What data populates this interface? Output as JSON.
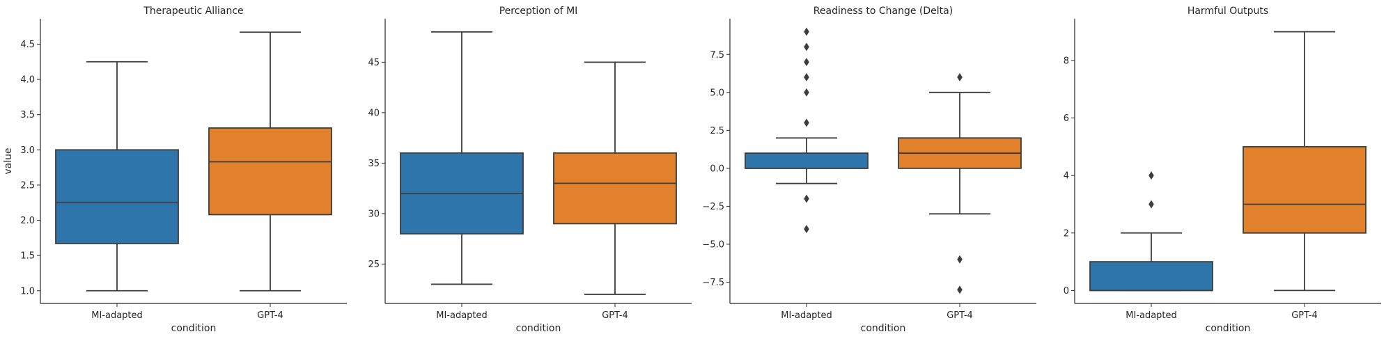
{
  "colors": {
    "MI-adapted": "#2e75ac",
    "GPT-4": "#e1812c"
  },
  "chart_data": [
    {
      "type": "box",
      "title": "Therapeutic Alliance",
      "xlabel": "condition",
      "ylabel": "value",
      "categories": [
        "MI-adapted",
        "GPT-4"
      ],
      "ylim": [
        0.82,
        4.86
      ],
      "yticks": [
        1.0,
        1.5,
        2.0,
        2.5,
        3.0,
        3.5,
        4.0,
        4.5
      ],
      "ytick_labels": [
        "1.0",
        "1.5",
        "2.0",
        "2.5",
        "3.0",
        "3.5",
        "4.0",
        "4.5"
      ],
      "boxes": [
        {
          "category": "MI-adapted",
          "whisker_low": 1.0,
          "q1": 1.67,
          "median": 2.25,
          "q3": 3.0,
          "whisker_high": 4.25,
          "outliers": []
        },
        {
          "category": "GPT-4",
          "whisker_low": 1.0,
          "q1": 2.08,
          "median": 2.83,
          "q3": 3.31,
          "whisker_high": 4.67,
          "outliers": []
        }
      ]
    },
    {
      "type": "box",
      "title": "Perception of MI",
      "xlabel": "condition",
      "ylabel": "",
      "categories": [
        "MI-adapted",
        "GPT-4"
      ],
      "ylim": [
        21.1,
        49.3
      ],
      "yticks": [
        25,
        30,
        35,
        40,
        45
      ],
      "ytick_labels": [
        "25",
        "30",
        "35",
        "40",
        "45"
      ],
      "boxes": [
        {
          "category": "MI-adapted",
          "whisker_low": 23,
          "q1": 28,
          "median": 32,
          "q3": 36,
          "whisker_high": 48,
          "outliers": []
        },
        {
          "category": "GPT-4",
          "whisker_low": 22,
          "q1": 29,
          "median": 33,
          "q3": 36,
          "whisker_high": 45,
          "outliers": []
        }
      ]
    },
    {
      "type": "box",
      "title": "Readiness to Change (Delta)",
      "xlabel": "condition",
      "ylabel": "",
      "categories": [
        "MI-adapted",
        "GPT-4"
      ],
      "ylim": [
        -8.9,
        9.85
      ],
      "yticks": [
        -7.5,
        -5.0,
        -2.5,
        0.0,
        2.5,
        5.0,
        7.5
      ],
      "ytick_labels": [
        "−7.5",
        "−5.0",
        "−2.5",
        "0.0",
        "2.5",
        "5.0",
        "7.5"
      ],
      "boxes": [
        {
          "category": "MI-adapted",
          "whisker_low": -1,
          "q1": 0,
          "median": 0,
          "q3": 1,
          "whisker_high": 2,
          "outliers": [
            3,
            5,
            6,
            7,
            8,
            9,
            -2,
            -4
          ]
        },
        {
          "category": "GPT-4",
          "whisker_low": -3,
          "q1": 0,
          "median": 1,
          "q3": 2,
          "whisker_high": 5,
          "outliers": [
            6,
            -6,
            -8
          ]
        }
      ]
    },
    {
      "type": "box",
      "title": "Harmful Outputs",
      "xlabel": "condition",
      "ylabel": "",
      "categories": [
        "MI-adapted",
        "GPT-4"
      ],
      "ylim": [
        -0.45,
        9.45
      ],
      "yticks": [
        0,
        2,
        4,
        6,
        8
      ],
      "ytick_labels": [
        "0",
        "2",
        "4",
        "6",
        "8"
      ],
      "boxes": [
        {
          "category": "MI-adapted",
          "whisker_low": 0,
          "q1": 0,
          "median": 0,
          "q3": 1,
          "whisker_high": 2,
          "outliers": [
            3,
            4
          ]
        },
        {
          "category": "GPT-4",
          "whisker_low": 0,
          "q1": 2,
          "median": 3,
          "q3": 5,
          "whisker_high": 9,
          "outliers": []
        }
      ]
    }
  ]
}
